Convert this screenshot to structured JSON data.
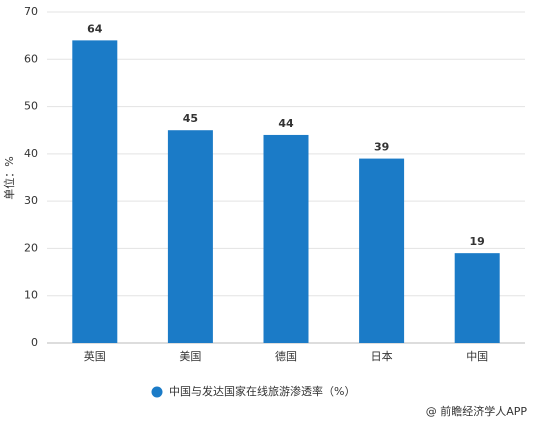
{
  "chart_data": {
    "type": "bar",
    "y_label": "单位：%",
    "categories": [
      "英国",
      "美国",
      "德国",
      "日本",
      "中国"
    ],
    "series": [
      {
        "name": "中国与发达国家在线旅游渗透率（%）",
        "color": "#1b7bc7",
        "values": [
          64,
          45,
          44,
          39,
          19
        ]
      }
    ],
    "ylim": [
      0,
      70
    ],
    "yticks": [
      0,
      10,
      20,
      30,
      40,
      50,
      60,
      70
    ],
    "grid": true,
    "source": "@ 前瞻经济学人APP"
  }
}
